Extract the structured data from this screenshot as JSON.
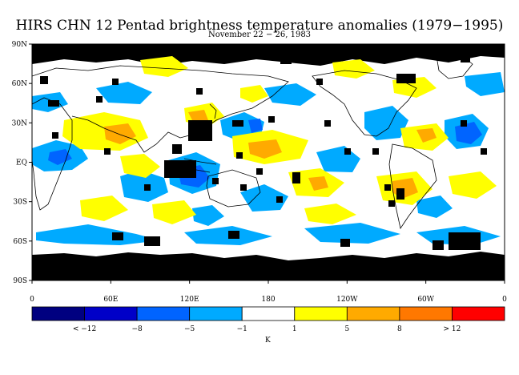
{
  "title": "HIRS CHN 12 Pentad brightness temperature anomalies (1979−1995)",
  "subtitle": "November 22 − 26, 1983",
  "lat_labels": [
    "90N",
    "60N",
    "30N",
    "EQ",
    "30S",
    "60S",
    "90S"
  ],
  "lon_labels": [
    "0",
    "60E",
    "120E",
    "180",
    "120W",
    "60W",
    "0"
  ],
  "colorbar": {
    "colors": [
      "#000080",
      "#0000c8",
      "#0064ff",
      "#00aaff",
      "#ffffff",
      "#ffff00",
      "#ffaa00",
      "#ff7800",
      "#ff0000"
    ],
    "labels": [
      "< −12",
      "−8",
      "−5",
      "−1",
      "1",
      "5",
      "8",
      "> 12"
    ],
    "unit": "K"
  },
  "missing_color": "#000000",
  "coastline_color": "#000000"
}
